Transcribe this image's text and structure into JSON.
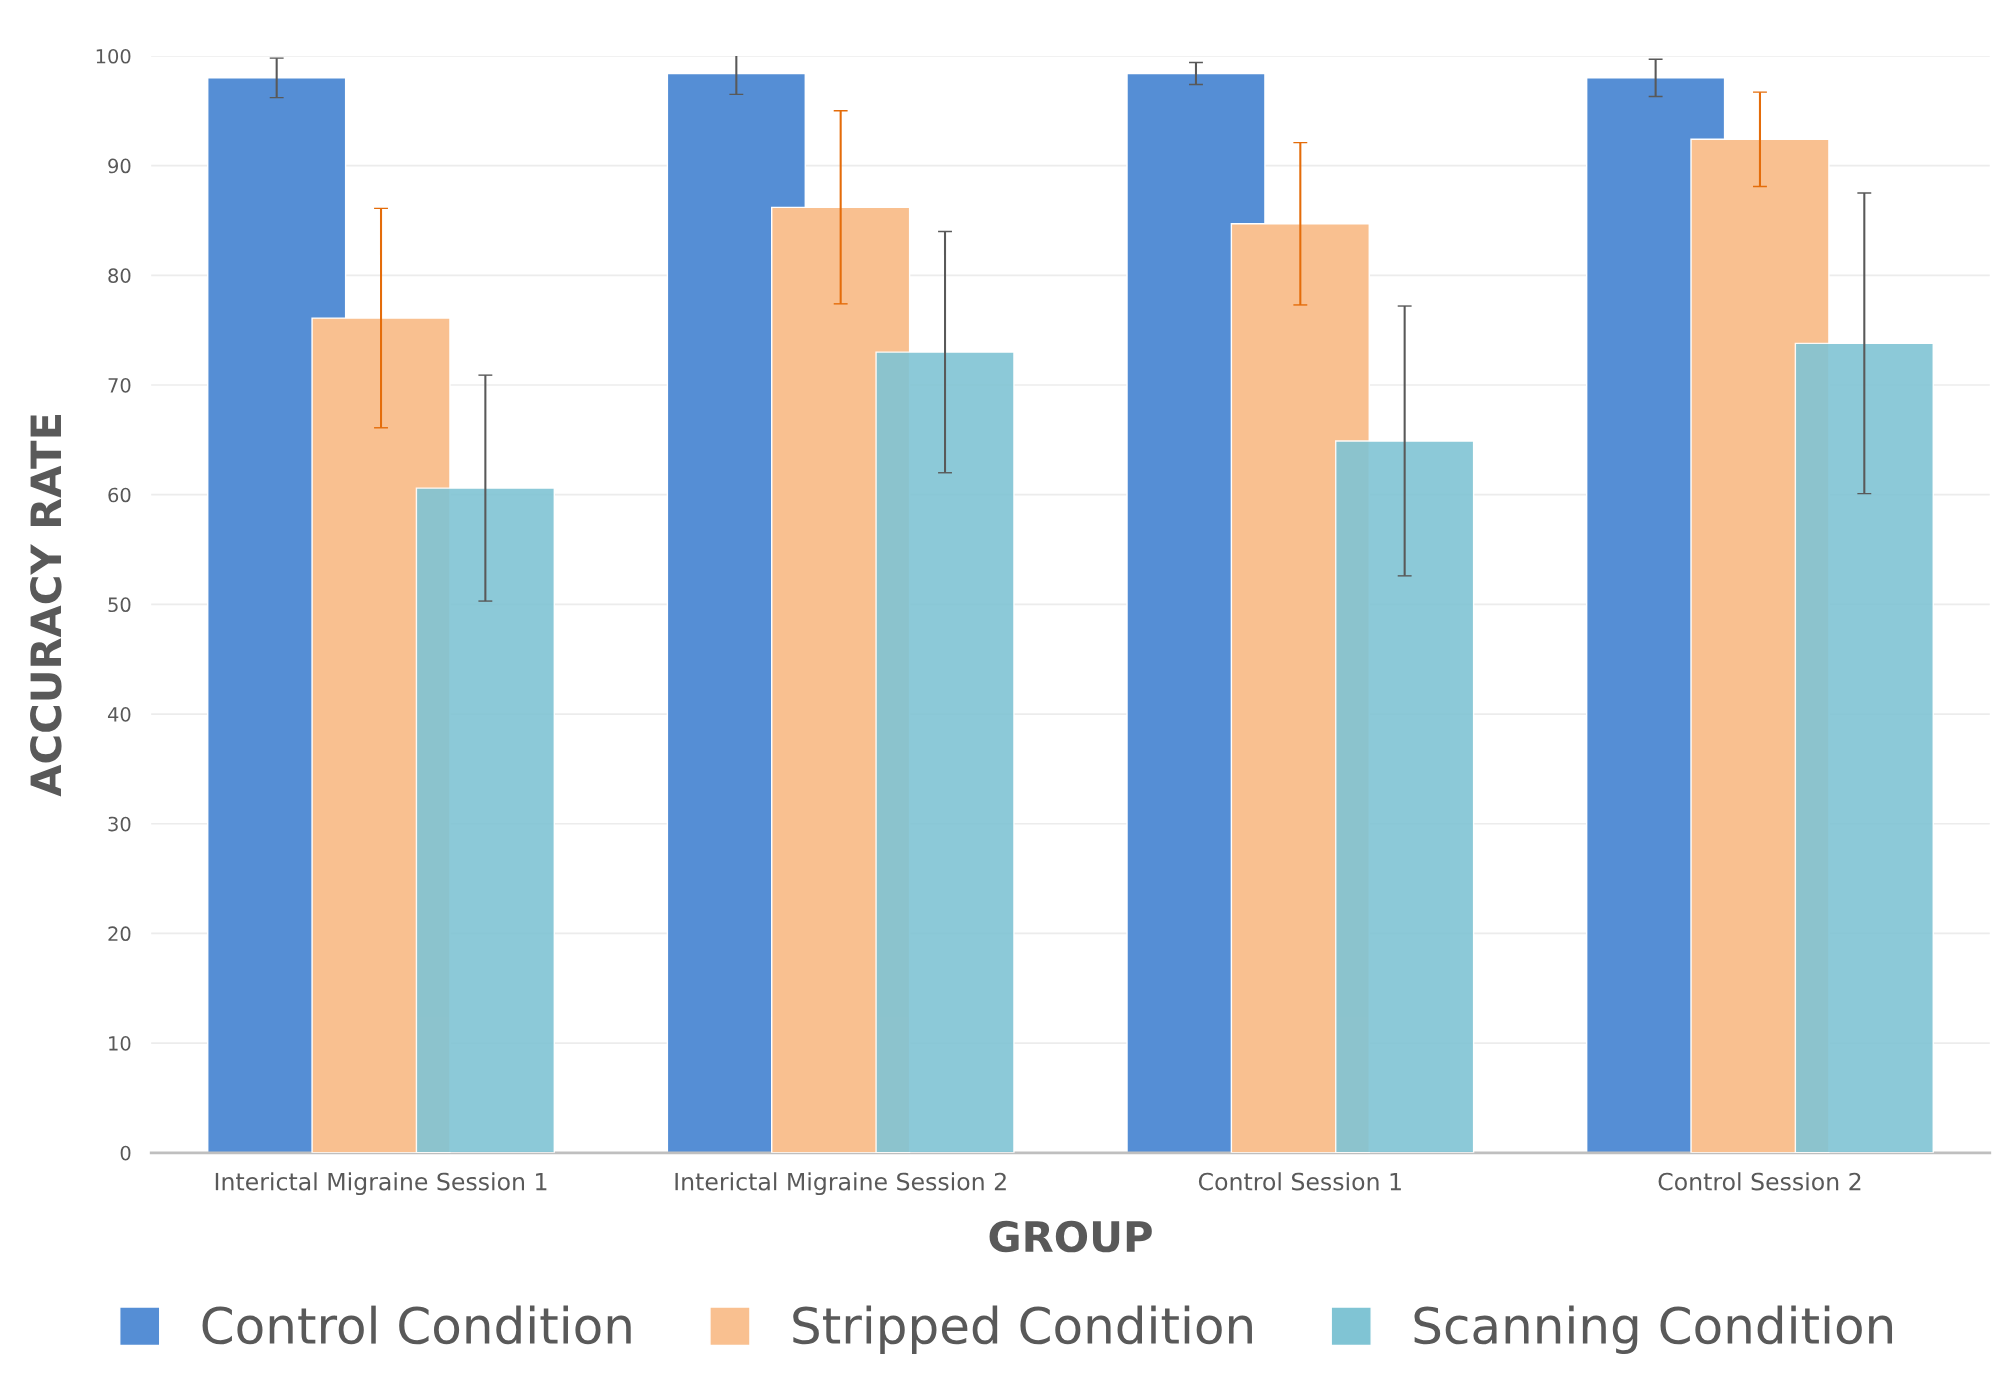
{
  "chart_data": {
    "type": "bar",
    "xlabel": "GROUP",
    "ylabel": "ACCURACY RATE",
    "categories": [
      "Interictal Migraine Session 1",
      "Interictal Migraine Session 2",
      "Control Session 1",
      "Control Session 2"
    ],
    "series": [
      {
        "name": "Control Condition",
        "color": "#558ed5",
        "values": [
          98.0,
          98.4,
          98.4,
          98.0
        ],
        "errors": [
          1.8,
          1.9,
          1.0,
          1.7
        ]
      },
      {
        "name": "Stripped Condition",
        "color": "#f9c090",
        "values": [
          76.1,
          86.2,
          84.7,
          92.4
        ],
        "errors": [
          10.0,
          8.8,
          7.4,
          4.3
        ]
      },
      {
        "name": "Scanning Condition",
        "color": "#80c4d4",
        "values": [
          60.6,
          73.0,
          64.9,
          73.8
        ],
        "errors": [
          10.3,
          11.0,
          12.3,
          13.7
        ]
      }
    ],
    "ylim": [
      0,
      100
    ],
    "yticks": [
      0,
      10,
      20,
      30,
      40,
      50,
      60,
      70,
      80,
      90,
      100
    ],
    "grid": "y",
    "legend": "bottom"
  }
}
